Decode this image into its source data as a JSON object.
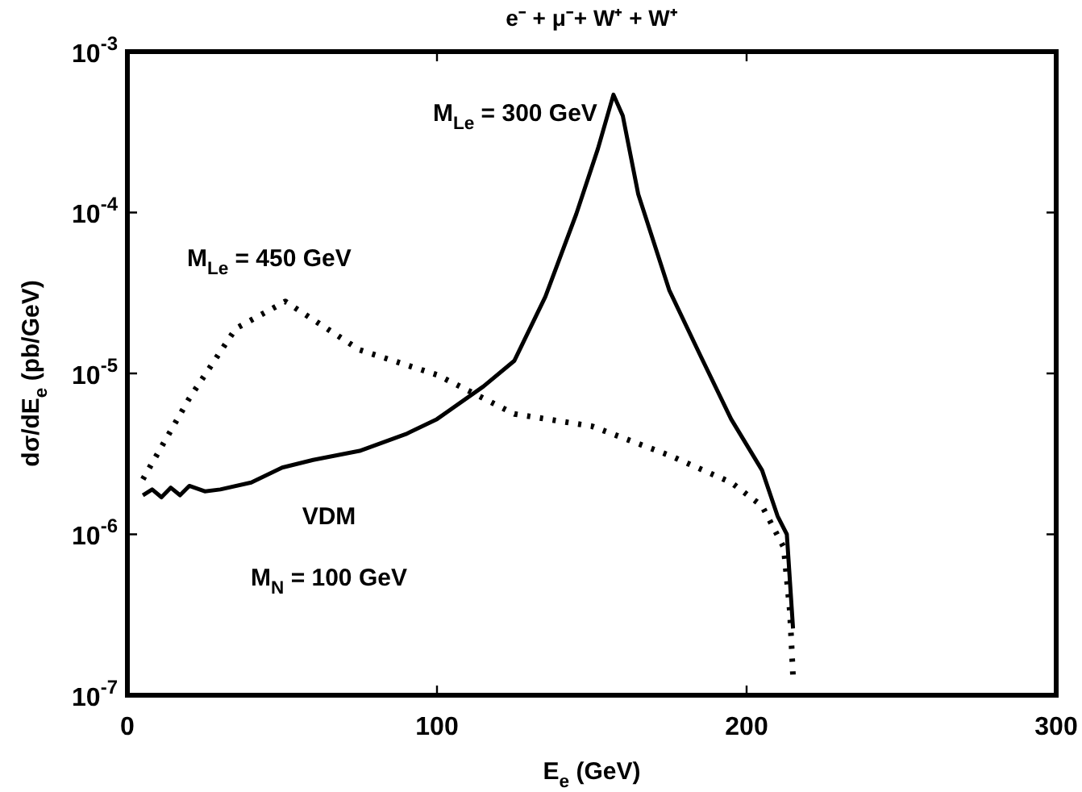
{
  "chart_data": {
    "type": "line",
    "title": "e⁻ + μ⁻+ W⁺ + W⁺",
    "xlabel": "E$_{e}$ (GeV)",
    "ylabel": "dσ/dE$_{e}$ (pb/GeV)",
    "annotations": [
      "VDM",
      "M$_{N}$ = 100 GeV"
    ],
    "log": "y",
    "grid": false,
    "legend": false,
    "marker": "none",
    "xlim": [
      0,
      300
    ],
    "xticks": [
      0,
      100,
      200,
      300
    ],
    "ylim": [
      1e-07,
      0.001
    ],
    "yticks": [
      {
        "value": 1e-07,
        "label": "10$^{-7}$"
      },
      {
        "value": 1e-06,
        "label": "10$^{-6}$"
      },
      {
        "value": 1e-05,
        "label": "10$^{-5}$"
      },
      {
        "value": 0.0001,
        "label": "10$^{-4}$"
      },
      {
        "value": 0.001,
        "label": "10$^{-3}$"
      }
    ],
    "series": [
      {
        "name": "M$_{Le}$ = 300 GeV",
        "color": "#000000",
        "line_style": "solid",
        "x": [
          5,
          8,
          11,
          14,
          17,
          20,
          25,
          30,
          40,
          50,
          60,
          75,
          90,
          100,
          115,
          125,
          135,
          145,
          152,
          157,
          160,
          165,
          175,
          185,
          195,
          205,
          210,
          213,
          215
        ],
        "values": [
          1.75e-06,
          1.9e-06,
          1.7e-06,
          1.95e-06,
          1.75e-06,
          2e-06,
          1.85e-06,
          1.9e-06,
          2.1e-06,
          2.6e-06,
          2.9e-06,
          3.3e-06,
          4.2e-06,
          5.2e-06,
          8.3e-06,
          1.2e-05,
          3e-05,
          9.8e-05,
          0.00025,
          0.00054,
          0.0004,
          0.00013,
          3.3e-05,
          1.3e-05,
          5.2e-06,
          2.5e-06,
          1.3e-06,
          1e-06,
          2.6e-07
        ]
      },
      {
        "name": "M$_{Le}$ = 450 GeV",
        "color": "#000000",
        "line_style": "dotted",
        "x": [
          5,
          20,
          35,
          51,
          75,
          100,
          125,
          150,
          175,
          195,
          205,
          212,
          214,
          215
        ],
        "values": [
          2.2e-06,
          7e-06,
          1.9e-05,
          2.8e-05,
          1.4e-05,
          9.8e-06,
          5.6e-06,
          4.7e-06,
          3.1e-06,
          2.1e-06,
          1.5e-06,
          8.3e-07,
          3.3e-07,
          1.3e-07
        ]
      }
    ]
  }
}
